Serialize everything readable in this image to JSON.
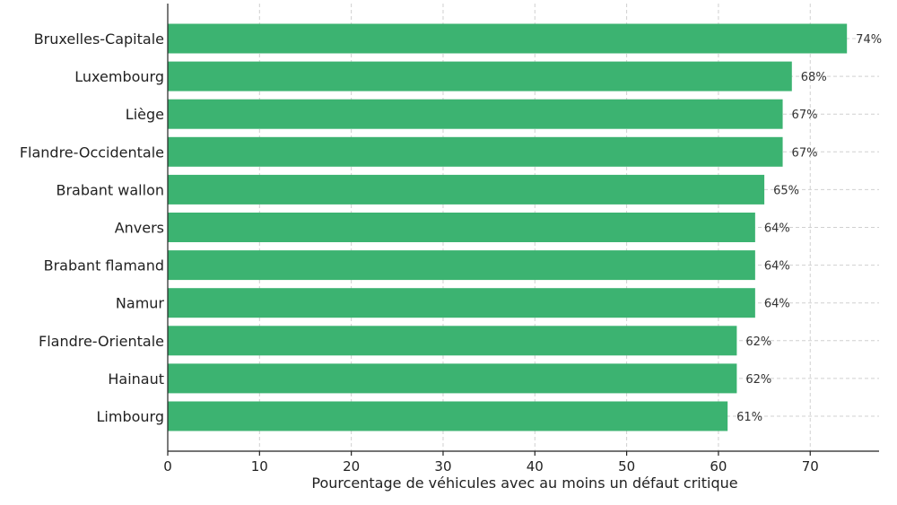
{
  "chart_data": {
    "type": "bar",
    "orientation": "horizontal",
    "title": "",
    "xlabel": "Pourcentage de véhicules avec au moins un défaut critique",
    "ylabel": "",
    "categories": [
      "Bruxelles-Capitale",
      "Luxembourg",
      "Liège",
      "Flandre-Occidentale",
      "Brabant wallon",
      "Anvers",
      "Brabant flamand",
      "Namur",
      "Flandre-Orientale",
      "Hainaut",
      "Limbourg"
    ],
    "values": [
      74,
      68,
      67,
      67,
      65,
      64,
      64,
      64,
      62,
      62,
      61
    ],
    "value_labels": [
      "74%",
      "68%",
      "67%",
      "67%",
      "65%",
      "64%",
      "64%",
      "64%",
      "62%",
      "62%",
      "61%"
    ],
    "xlim": [
      0,
      77.5
    ],
    "xticks": [
      0,
      10,
      20,
      30,
      40,
      50,
      60,
      70
    ],
    "xtick_labels": [
      "0",
      "10",
      "20",
      "30",
      "40",
      "50",
      "60",
      "70"
    ],
    "grid": true,
    "legend": "none",
    "colors": {
      "bar": "#3cb371",
      "grid": "#d0d0d0",
      "axis": "#222222"
    }
  }
}
